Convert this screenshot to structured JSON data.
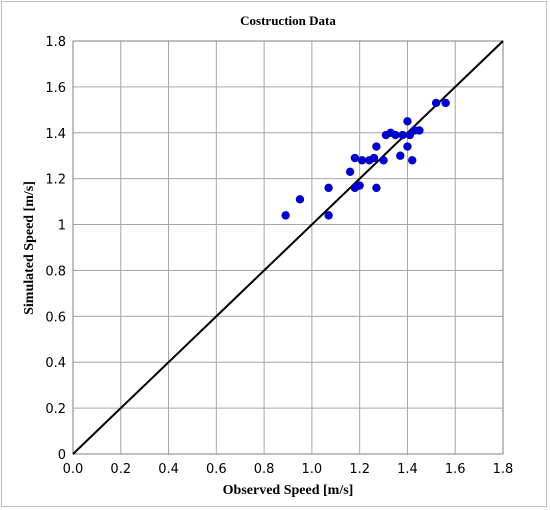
{
  "chart_data": {
    "type": "scatter",
    "title": "Costruction Data",
    "xlabel": "Observed Speed [m/s]",
    "ylabel": "Simulated Speed [m/s]",
    "xlim": [
      0.0,
      1.8
    ],
    "ylim": [
      0,
      1.8
    ],
    "xticks": [
      "0.0",
      "0.2",
      "0.4",
      "0.6",
      "0.8",
      "1.0",
      "1.2",
      "1.4",
      "1.6",
      "1.8"
    ],
    "yticks": [
      "0",
      "0.2",
      "0.4",
      "0.6",
      "0.8",
      "1",
      "1.2",
      "1.4",
      "1.6",
      "1.8"
    ],
    "grid": true,
    "legend": "none",
    "reference_line": {
      "from": [
        0,
        0
      ],
      "to": [
        1.8,
        1.8
      ],
      "color": "#000000"
    },
    "series": [
      {
        "color": "#0000cc",
        "points": [
          [
            0.89,
            1.04
          ],
          [
            0.95,
            1.11
          ],
          [
            1.07,
            1.04
          ],
          [
            1.07,
            1.16
          ],
          [
            1.16,
            1.23
          ],
          [
            1.18,
            1.29
          ],
          [
            1.18,
            1.16
          ],
          [
            1.2,
            1.17
          ],
          [
            1.21,
            1.28
          ],
          [
            1.24,
            1.28
          ],
          [
            1.26,
            1.29
          ],
          [
            1.27,
            1.34
          ],
          [
            1.27,
            1.16
          ],
          [
            1.3,
            1.28
          ],
          [
            1.31,
            1.39
          ],
          [
            1.33,
            1.4
          ],
          [
            1.35,
            1.39
          ],
          [
            1.37,
            1.3
          ],
          [
            1.38,
            1.39
          ],
          [
            1.4,
            1.45
          ],
          [
            1.4,
            1.34
          ],
          [
            1.41,
            1.39
          ],
          [
            1.42,
            1.28
          ],
          [
            1.43,
            1.41
          ],
          [
            1.45,
            1.41
          ],
          [
            1.52,
            1.53
          ],
          [
            1.56,
            1.53
          ]
        ]
      }
    ]
  }
}
